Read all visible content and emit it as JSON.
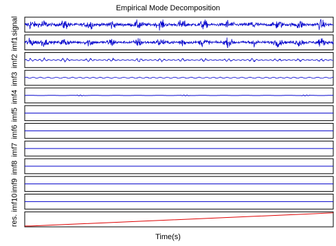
{
  "chart_data": {
    "type": "line",
    "title": "Empirical Mode Decomposition",
    "xlabel": "Time(s)",
    "grid": false,
    "legend": "none",
    "colors": {
      "signal": "#0000cc",
      "residual": "#dd0000",
      "axes": "#000000"
    },
    "panels": [
      {
        "label": "signal",
        "kind": "oscillation",
        "amplitude": 1.0,
        "frequency": "high",
        "color": "#0000cc"
      },
      {
        "label": "imf1",
        "kind": "oscillation",
        "amplitude": 0.9,
        "frequency": "high",
        "color": "#0000cc"
      },
      {
        "label": "imf2",
        "kind": "oscillation",
        "amplitude": 0.35,
        "frequency": "medium",
        "color": "#0000cc"
      },
      {
        "label": "imf3",
        "kind": "oscillation",
        "amplitude": 0.12,
        "frequency": "low",
        "color": "#0000cc"
      },
      {
        "label": "imf4",
        "kind": "near-flat",
        "amplitude": 0.05,
        "frequency": "very-low",
        "color": "#0000cc"
      },
      {
        "label": "imf5",
        "kind": "flat",
        "amplitude": 0.0,
        "color": "#0000cc"
      },
      {
        "label": "imf6",
        "kind": "flat",
        "amplitude": 0.0,
        "color": "#0000cc"
      },
      {
        "label": "imf7",
        "kind": "flat",
        "amplitude": 0.0,
        "color": "#0000cc"
      },
      {
        "label": "imf8",
        "kind": "flat",
        "amplitude": 0.0,
        "color": "#0000cc"
      },
      {
        "label": "imf9",
        "kind": "flat",
        "amplitude": 0.0,
        "color": "#0000cc"
      },
      {
        "label": "imf10",
        "kind": "flat",
        "amplitude": 0.0,
        "color": "#0000cc"
      },
      {
        "label": "res.",
        "kind": "trend",
        "start": 0.0,
        "end": 1.0,
        "color": "#dd0000"
      }
    ]
  }
}
